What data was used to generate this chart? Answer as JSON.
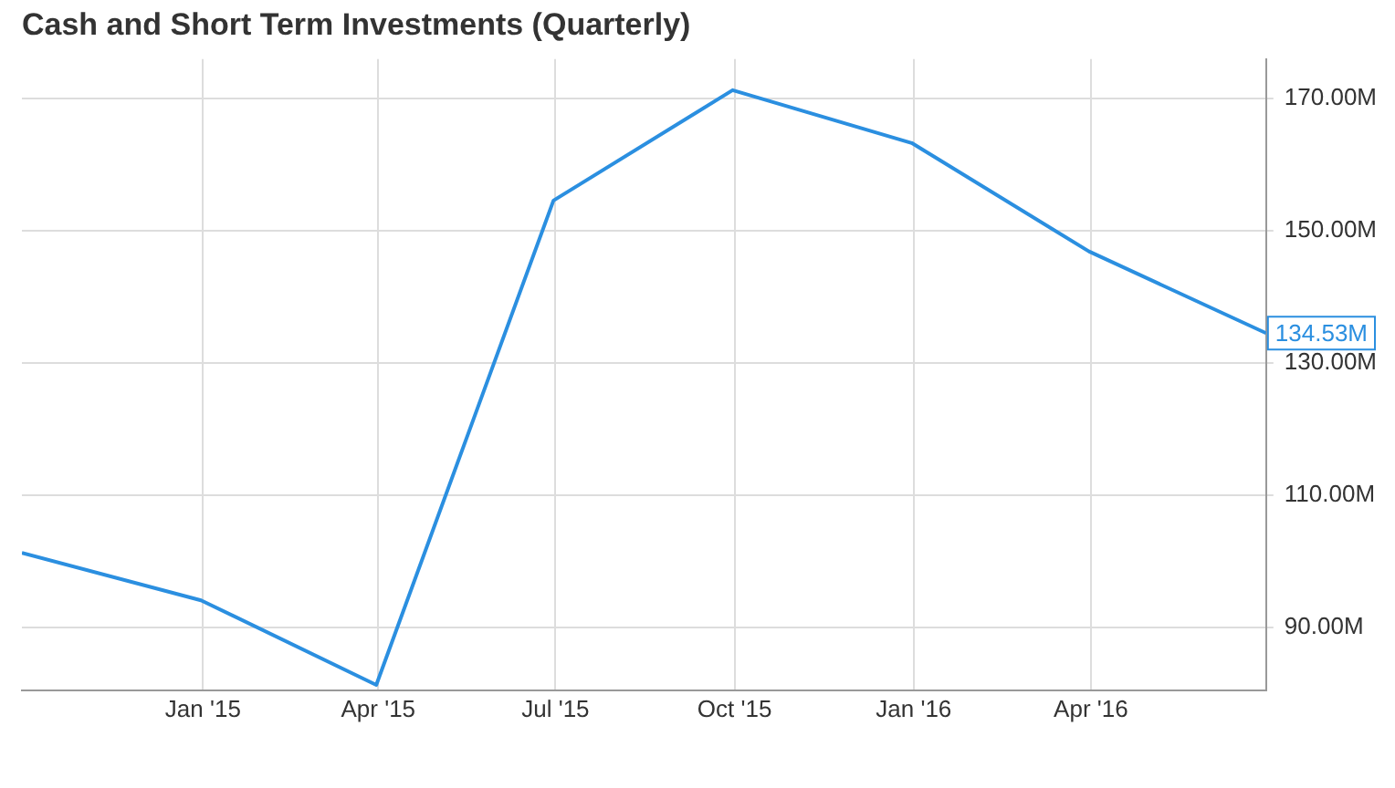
{
  "chart_data": {
    "type": "line",
    "title": "Cash and Short Term Investments (Quarterly)",
    "x": [
      "2014-09-30",
      "2014-12-31",
      "2015-03-31",
      "2015-06-30",
      "2015-09-30",
      "2015-12-31",
      "2016-03-31",
      "2016-06-30"
    ],
    "series": [
      {
        "color": "#2b8fe0",
        "values": [
          101.3,
          94.1,
          81.3,
          154.6,
          171.3,
          163.3,
          146.9,
          134.53
        ],
        "value_labels": [
          null,
          null,
          null,
          null,
          null,
          null,
          null,
          "134.53M"
        ]
      }
    ],
    "xlim": [
      "2014-09-30",
      "2016-06-30"
    ],
    "xticks": [
      {
        "value": "2015-01-01",
        "label": "Jan '15"
      },
      {
        "value": "2015-04-01",
        "label": "Apr '15"
      },
      {
        "value": "2015-07-01",
        "label": "Jul '15"
      },
      {
        "value": "2015-10-01",
        "label": "Oct '15"
      },
      {
        "value": "2016-01-01",
        "label": "Jan '16"
      },
      {
        "value": "2016-04-01",
        "label": "Apr '16"
      }
    ],
    "ylim": [
      80.5,
      176
    ],
    "yticks": [
      {
        "value": 90,
        "label": "90.00M"
      },
      {
        "value": 110,
        "label": "110.00M"
      },
      {
        "value": 130,
        "label": "130.00M"
      },
      {
        "value": 150,
        "label": "150.00M"
      },
      {
        "value": 170,
        "label": "170.00M"
      }
    ],
    "grid": true,
    "marker": "none",
    "line_style": "solid",
    "legend": false
  }
}
